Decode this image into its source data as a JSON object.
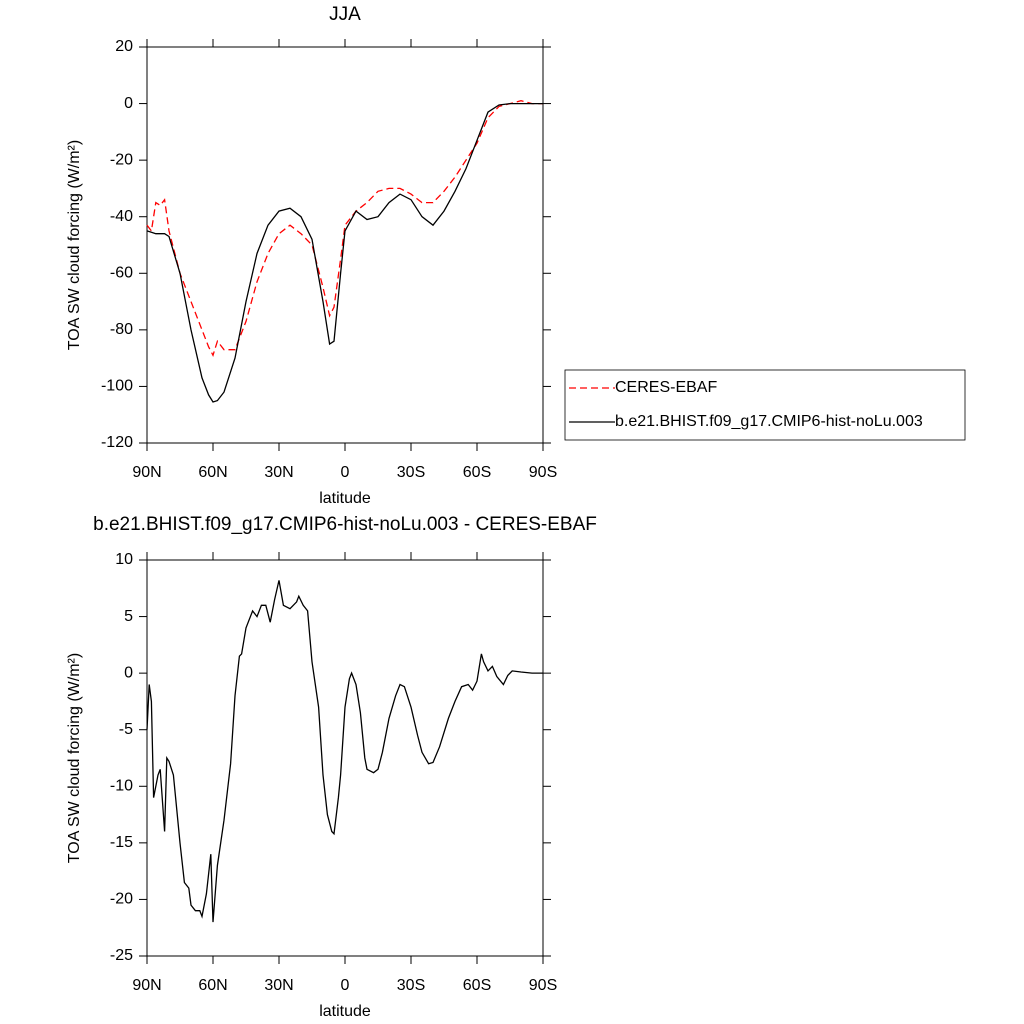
{
  "chart_data": [
    {
      "type": "line",
      "title": "JJA",
      "xlabel": "latitude",
      "ylabel": "TOA SW cloud forcing (W/m²)",
      "x": [
        90,
        88,
        86,
        84,
        82,
        80,
        75,
        70,
        65,
        62,
        60,
        58,
        55,
        50,
        45,
        40,
        35,
        30,
        25,
        20,
        15,
        10,
        7,
        5,
        2,
        0,
        -5,
        -10,
        -15,
        -20,
        -25,
        -30,
        -35,
        -40,
        -45,
        -50,
        -55,
        -60,
        -65,
        -70,
        -75,
        -80,
        -85,
        -90
      ],
      "series": [
        {
          "name": "CERES-EBAF",
          "color": "#ff0000",
          "style": "dashed",
          "values": [
            -43,
            -45,
            -35,
            -36,
            -34,
            -45,
            -60,
            -70,
            -80,
            -86,
            -89,
            -84,
            -87,
            -87,
            -77,
            -63,
            -53,
            -46,
            -43,
            -46,
            -50,
            -65,
            -75,
            -72,
            -55,
            -43,
            -38,
            -35,
            -31,
            -30,
            -30,
            -32,
            -35,
            -35,
            -31,
            -26,
            -20,
            -14,
            -5,
            -1,
            0,
            1,
            0,
            0
          ]
        },
        {
          "name": "b.e21.BHIST.f09_g17.CMIP6-hist-noLu.003",
          "color": "#000000",
          "style": "solid",
          "values": [
            -45,
            -45.5,
            -46,
            -46,
            -46,
            -47,
            -60,
            -80,
            -97,
            -103,
            -105.5,
            -105,
            -102,
            -90,
            -70,
            -53,
            -43,
            -38,
            -37,
            -40,
            -48,
            -70,
            -85,
            -84,
            -60,
            -45,
            -38,
            -41,
            -40,
            -35,
            -32,
            -34,
            -40,
            -43,
            -38,
            -31,
            -23,
            -13,
            -3,
            -0.5,
            0,
            0,
            0,
            0
          ]
        }
      ],
      "xlim": [
        90,
        -90
      ],
      "xticks": [
        {
          "value": 90,
          "label": "90N"
        },
        {
          "value": 60,
          "label": "60N"
        },
        {
          "value": 30,
          "label": "30N"
        },
        0,
        {
          "value": -30,
          "label": "30S"
        },
        {
          "value": -60,
          "label": "60S"
        },
        {
          "value": -90,
          "label": "90S"
        }
      ],
      "ylim": [
        -120,
        20
      ],
      "yticks": [
        20,
        0,
        -20,
        -40,
        -60,
        -80,
        -100,
        -120
      ],
      "legend": "right"
    },
    {
      "type": "line",
      "title": "b.e21.BHIST.f09_g17.CMIP6-hist-noLu.003 - CERES-EBAF",
      "xlabel": "latitude",
      "ylabel": "TOA SW cloud forcing (W/m²)",
      "color": "#000000",
      "x": [
        90,
        89,
        88,
        87,
        85,
        84,
        82,
        81,
        80,
        78,
        77,
        75,
        73,
        71,
        70,
        68,
        66,
        65,
        63,
        61,
        60,
        58,
        55,
        52,
        50,
        48,
        47,
        45,
        42,
        40,
        38,
        36,
        34,
        32,
        30,
        28,
        25,
        22,
        21,
        19,
        17,
        15,
        12,
        10,
        8,
        6,
        5,
        3,
        2,
        0,
        -2,
        -3,
        -5,
        -7,
        -9,
        -10,
        -13,
        -15,
        -17,
        -20,
        -23,
        -25,
        -27,
        -30,
        -33,
        -35,
        -38,
        -40,
        -43,
        -47,
        -50,
        -53,
        -56,
        -58,
        -60,
        -62,
        -63,
        -65,
        -67,
        -69,
        -72,
        -74,
        -76,
        -80,
        -85,
        -90
      ],
      "values": [
        -5,
        -1,
        -2.5,
        -11,
        -9,
        -8.5,
        -14,
        -7.5,
        -7.8,
        -9,
        -11,
        -15,
        -18.5,
        -19,
        -20.5,
        -21,
        -21,
        -21.5,
        -19.5,
        -16,
        -22,
        -17,
        -13,
        -8,
        -2,
        1.5,
        1.7,
        4,
        5.5,
        5,
        6,
        6,
        4.5,
        6.5,
        8.2,
        6,
        5.7,
        6.3,
        6.8,
        6,
        5.5,
        1,
        -3,
        -9,
        -12.5,
        -14,
        -14.2,
        -11,
        -9,
        -3,
        -0.5,
        0,
        -1,
        -3.5,
        -7.5,
        -8.5,
        -8.8,
        -8.5,
        -7,
        -4,
        -2,
        -1,
        -1.2,
        -3,
        -5.5,
        -7,
        -8,
        -7.9,
        -6.5,
        -4,
        -2.5,
        -1.2,
        -1,
        -1.5,
        -0.7,
        1.7,
        1,
        0.2,
        0.6,
        -0.3,
        -1,
        -0.2,
        0.2,
        0.1,
        0,
        0
      ],
      "xlim": [
        90,
        -90
      ],
      "xticks": [
        {
          "value": 90,
          "label": "90N"
        },
        {
          "value": 60,
          "label": "60N"
        },
        {
          "value": 30,
          "label": "30N"
        },
        0,
        {
          "value": -30,
          "label": "30S"
        },
        {
          "value": -60,
          "label": "60S"
        },
        {
          "value": -90,
          "label": "90S"
        }
      ],
      "ylim": [
        -25,
        10
      ],
      "yticks": [
        10,
        5,
        0,
        -5,
        -10,
        -15,
        -20,
        -25
      ]
    }
  ]
}
